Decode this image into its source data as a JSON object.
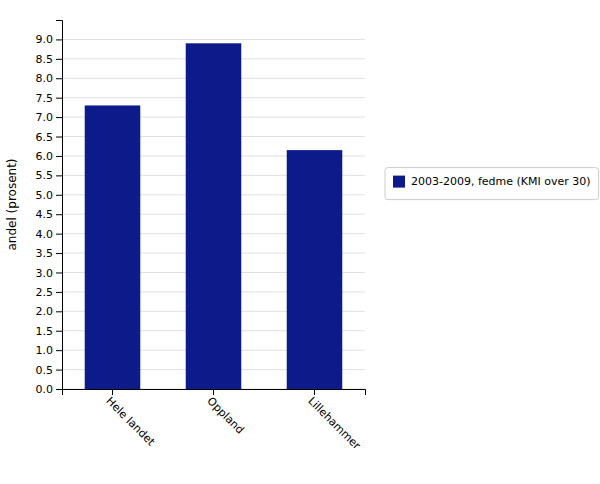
{
  "chart_data": {
    "type": "bar",
    "categories": [
      "Hele landet",
      "Oppland",
      "Lillehammer"
    ],
    "series": [
      {
        "name": "2003-2009, fedme (KMI over 30)",
        "color": "#0c1a8a",
        "values": [
          7.3,
          8.9,
          6.15
        ]
      }
    ],
    "ylabel": "andel (prosent)",
    "ylim": [
      0.0,
      9.5
    ],
    "yticks": [
      {
        "value": 0,
        "label": "0.0"
      },
      0.5,
      {
        "value": 1,
        "label": "1.0"
      },
      1.5,
      {
        "value": 2,
        "label": "2.0"
      },
      2.5,
      {
        "value": 3,
        "label": "3.0"
      },
      3.5,
      {
        "value": 4,
        "label": "4.0"
      },
      4.5,
      {
        "value": 5,
        "label": "5.0"
      },
      5.5,
      {
        "value": 6,
        "label": "6.0"
      },
      6.5,
      {
        "value": 7,
        "label": "7.0"
      },
      7.5,
      {
        "value": 8,
        "label": "8.0"
      },
      8.5,
      {
        "value": 9,
        "label": "9.0"
      }
    ],
    "grid": true,
    "legend": "right"
  }
}
